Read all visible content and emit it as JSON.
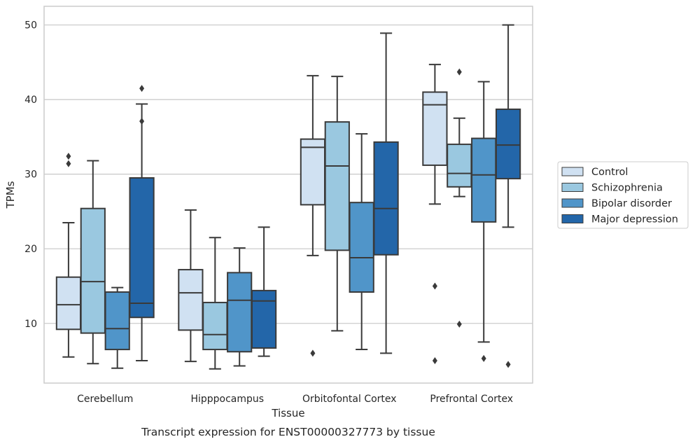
{
  "chart_data": {
    "type": "box",
    "title": "",
    "caption": "Transcript expression for ENST00000327773 by tissue",
    "xlabel": "Tissue",
    "ylabel": "TPMs",
    "ylim": [
      2,
      52.5
    ],
    "yticks": [
      10,
      20,
      30,
      40,
      50
    ],
    "grid": "horizontal",
    "legend_position": "right",
    "categories": [
      "Cerebellum",
      "Hipppocampus",
      "Orbitofontal Cortex",
      "Prefrontal Cortex"
    ],
    "series": [
      {
        "name": "Control",
        "color": "#d0e1f2",
        "boxes": [
          {
            "whislo": 5.5,
            "q1": 9.2,
            "med": 12.5,
            "q3": 16.2,
            "whishi": 23.5,
            "fliers": [
              31.4,
              32.4
            ]
          },
          {
            "whislo": 4.9,
            "q1": 9.1,
            "med": 14.1,
            "q3": 17.2,
            "whishi": 25.2,
            "fliers": []
          },
          {
            "whislo": 19.1,
            "q1": 25.9,
            "med": 33.6,
            "q3": 34.7,
            "whishi": 43.2,
            "fliers": [
              6.0
            ]
          },
          {
            "whislo": 26.0,
            "q1": 31.2,
            "med": 39.3,
            "q3": 41.0,
            "whishi": 44.7,
            "fliers": [
              15.0,
              5.0
            ]
          }
        ]
      },
      {
        "name": "Schizophrenia",
        "color": "#9ac8e0",
        "boxes": [
          {
            "whislo": 4.6,
            "q1": 8.7,
            "med": 15.6,
            "q3": 25.4,
            "whishi": 31.8,
            "fliers": []
          },
          {
            "whislo": 3.9,
            "q1": 6.5,
            "med": 8.5,
            "q3": 12.8,
            "whishi": 21.5,
            "fliers": []
          },
          {
            "whislo": 9.0,
            "q1": 19.8,
            "med": 31.1,
            "q3": 37.0,
            "whishi": 43.1,
            "fliers": []
          },
          {
            "whislo": 27.0,
            "q1": 28.3,
            "med": 30.1,
            "q3": 34.0,
            "whishi": 37.5,
            "fliers": [
              43.7,
              9.9
            ]
          }
        ]
      },
      {
        "name": "Bipolar disorder",
        "color": "#5095c9",
        "boxes": [
          {
            "whislo": 4.0,
            "q1": 6.5,
            "med": 9.3,
            "q3": 14.2,
            "whishi": 14.8,
            "fliers": []
          },
          {
            "whislo": 4.3,
            "q1": 6.2,
            "med": 13.1,
            "q3": 16.8,
            "whishi": 20.1,
            "fliers": []
          },
          {
            "whislo": 6.5,
            "q1": 14.2,
            "med": 18.8,
            "q3": 26.2,
            "whishi": 35.4,
            "fliers": []
          },
          {
            "whislo": 7.5,
            "q1": 23.6,
            "med": 29.9,
            "q3": 34.8,
            "whishi": 42.4,
            "fliers": [
              5.3
            ]
          }
        ]
      },
      {
        "name": "Major depression",
        "color": "#2366a9",
        "boxes": [
          {
            "whislo": 5.0,
            "q1": 10.8,
            "med": 12.7,
            "q3": 29.5,
            "whishi": 39.4,
            "fliers": [
              41.5,
              37.1
            ]
          },
          {
            "whislo": 5.6,
            "q1": 6.7,
            "med": 13.0,
            "q3": 14.4,
            "whishi": 22.9,
            "fliers": []
          },
          {
            "whislo": 6.0,
            "q1": 19.2,
            "med": 25.4,
            "q3": 34.3,
            "whishi": 48.9,
            "fliers": []
          },
          {
            "whislo": 22.9,
            "q1": 29.4,
            "med": 33.9,
            "q3": 38.7,
            "whishi": 50.0,
            "fliers": [
              4.5
            ]
          }
        ]
      }
    ]
  }
}
